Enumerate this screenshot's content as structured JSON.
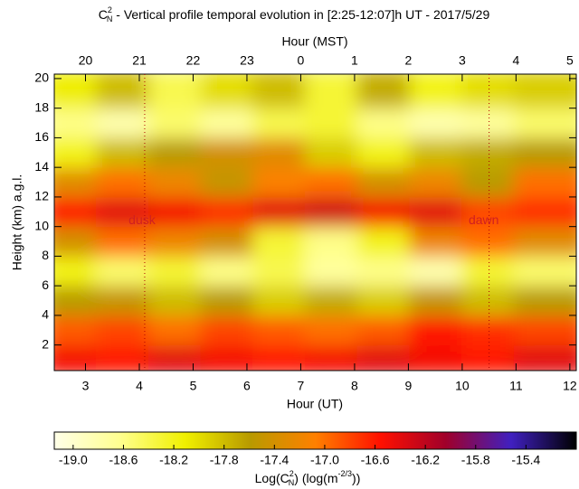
{
  "chart_data": {
    "type": "heatmap",
    "title": {
      "symbol": "C",
      "sup": "2",
      "sub": "N",
      "text": " - Vertical profile temporal evolution in [2:25-12:07]h UT - 2017/5/29"
    },
    "x_label": "Hour (UT)",
    "x2_label": "Hour (MST)",
    "y_label": "Height (km) a.g.l.",
    "xlim": [
      2.42,
      12.12
    ],
    "xticks": [
      3,
      4,
      5,
      6,
      7,
      8,
      9,
      10,
      11,
      12
    ],
    "x2lim": [
      19.42,
      29.12
    ],
    "x2ticks": [
      20,
      21,
      22,
      23,
      {
        "value": 24,
        "label": "0"
      },
      {
        "value": 25,
        "label": "1"
      },
      {
        "value": 26,
        "label": "2"
      },
      {
        "value": 27,
        "label": "3"
      },
      {
        "value": 28,
        "label": "4"
      },
      {
        "value": 29,
        "label": "5"
      }
    ],
    "ylim": [
      0.27,
      20.3
    ],
    "yticks": [
      2,
      4,
      6,
      8,
      10,
      12,
      14,
      16,
      18,
      20
    ],
    "x": [
      2.905,
      3.875,
      4.845,
      5.815,
      6.785,
      7.755,
      8.725,
      9.695,
      10.665,
      11.635
    ],
    "y": [
      1.27,
      3.27,
      5.27,
      7.27,
      9.27,
      11.27,
      13.27,
      15.27,
      17.27,
      19.27
    ],
    "z": [
      [
        -16.5,
        -16.6,
        -16.4,
        -16.5,
        -16.6,
        -16.5,
        -16.4,
        -16.5,
        -16.6,
        -16.4
      ],
      [
        -16.9,
        -16.8,
        -17.0,
        -16.8,
        -16.9,
        -17.0,
        -16.9,
        -16.6,
        -16.7,
        -16.8
      ],
      [
        -17.6,
        -17.5,
        -17.8,
        -17.6,
        -17.9,
        -17.7,
        -17.9,
        -17.5,
        -17.8,
        -17.6
      ],
      [
        -18.2,
        -18.5,
        -18.3,
        -18.6,
        -18.4,
        -18.7,
        -18.6,
        -18.8,
        -18.3,
        -18.5
      ],
      [
        -17.4,
        -17.0,
        -17.2,
        -17.4,
        -18.3,
        -18.6,
        -18.2,
        -17.2,
        -17.0,
        -17.3
      ],
      [
        -16.6,
        -16.4,
        -16.5,
        -16.7,
        -16.4,
        -16.3,
        -16.5,
        -16.4,
        -16.8,
        -16.7
      ],
      [
        -17.3,
        -17.0,
        -17.2,
        -17.5,
        -17.1,
        -17.0,
        -17.4,
        -17.2,
        -17.6,
        -17.0
      ],
      [
        -18.2,
        -17.8,
        -17.6,
        -17.4,
        -17.3,
        -17.9,
        -18.2,
        -17.8,
        -17.7,
        -17.6
      ],
      [
        -18.6,
        -18.8,
        -18.5,
        -18.7,
        -18.4,
        -18.3,
        -18.6,
        -18.8,
        -18.7,
        -18.5
      ],
      [
        -18.1,
        -17.8,
        -18.4,
        -18.0,
        -17.8,
        -18.3,
        -17.7,
        -18.2,
        -18.0,
        -17.9
      ]
    ],
    "colormap": [
      "#ffffe8",
      "#ffff90",
      "#f0f000",
      "#b89a00",
      "#ff8000",
      "#ff1000",
      "#a0002a",
      "#4020c0",
      "#000000"
    ],
    "clim": [
      -19.15,
      -15.0
    ],
    "cticks": [
      {
        "value": -19,
        "label": "-19.0"
      },
      -18.6,
      -18.2,
      -17.8,
      -17.4,
      {
        "value": -17,
        "label": "-17.0"
      },
      -16.6,
      -16.2,
      -15.8,
      -15.4
    ],
    "colorbar_label": [
      "Log(C",
      "2",
      "N",
      ") (log(m",
      "-2/3",
      "))"
    ],
    "vlines": [
      4.1,
      10.5
    ],
    "annotations": [
      {
        "text": "dusk",
        "x": 4.05,
        "y": 10.4
      },
      {
        "text": "dawn",
        "x": 10.4,
        "y": 10.4
      }
    ]
  }
}
